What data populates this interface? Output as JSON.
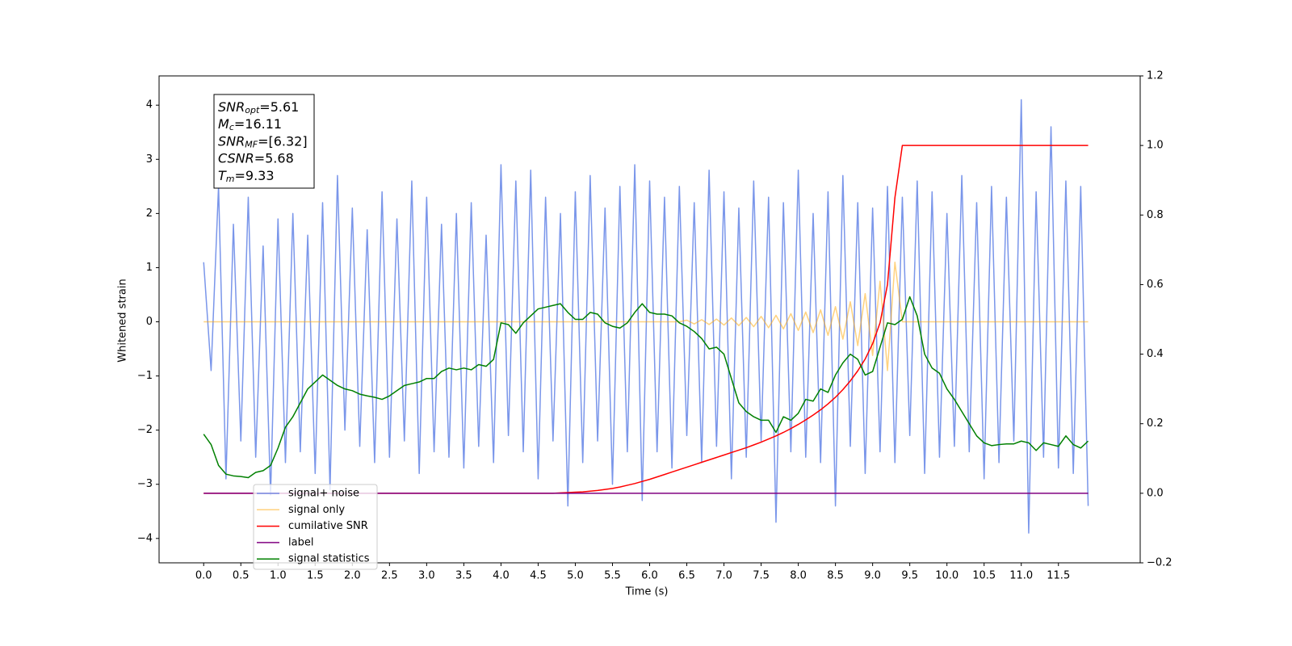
{
  "chart_data": {
    "type": "line",
    "x_label": "Time (s)",
    "y_label": "Whitened strain",
    "xlim": [
      -0.6,
      12.6
    ],
    "ylim": [
      -4.45,
      4.54
    ],
    "y2lim": [
      -0.2,
      1.2
    ],
    "xticks": [
      {
        "value": 0,
        "label": "0.0"
      },
      0.5,
      {
        "value": 1,
        "label": "1.0"
      },
      1.5,
      {
        "value": 2,
        "label": "2.0"
      },
      2.5,
      {
        "value": 3,
        "label": "3.0"
      },
      3.5,
      {
        "value": 4,
        "label": "4.0"
      },
      4.5,
      {
        "value": 5,
        "label": "5.0"
      },
      5.5,
      {
        "value": 6,
        "label": "6.0"
      },
      6.5,
      {
        "value": 7,
        "label": "7.0"
      },
      7.5,
      {
        "value": 8,
        "label": "8.0"
      },
      8.5,
      {
        "value": 9,
        "label": "9.0"
      },
      9.5,
      {
        "value": 10,
        "label": "10.0"
      },
      10.5,
      {
        "value": 11,
        "label": "11.0"
      },
      11.5
    ],
    "yticks": [
      {
        "value": -4,
        "label": "−4"
      },
      {
        "value": -3,
        "label": "−3"
      },
      {
        "value": -2,
        "label": "−2"
      },
      {
        "value": -1,
        "label": "−1"
      },
      0,
      1,
      2,
      3,
      4
    ],
    "y2ticks": [
      {
        "value": -0.2,
        "label": "−0.2"
      },
      {
        "value": 0,
        "label": "0.0"
      },
      0.2,
      0.4,
      0.6,
      0.8,
      {
        "value": 1,
        "label": "1.0"
      },
      1.2
    ],
    "legend_loc": "lower left",
    "annotations": [
      {
        "symbol": "SNR",
        "subscript": "opt",
        "text": "=5.61"
      },
      {
        "symbol": "M",
        "subscript": "c",
        "text": "=16.11"
      },
      {
        "symbol": "SNR",
        "subscript": "MF",
        "text": "=[6.32]"
      },
      {
        "symbol": "CSNR",
        "text": "=5.68"
      },
      {
        "symbol": "T",
        "subscript": "m",
        "text": "=9.33"
      }
    ],
    "x": [
      0,
      0.1,
      0.2,
      0.3,
      0.4,
      0.5,
      0.6,
      0.7,
      0.8,
      0.9,
      1,
      1.1,
      1.2,
      1.3,
      1.4,
      1.5,
      1.6,
      1.7,
      1.8,
      1.9,
      2,
      2.1,
      2.2,
      2.3,
      2.4,
      2.5,
      2.6,
      2.7,
      2.8,
      2.9,
      3,
      3.1,
      3.2,
      3.3,
      3.4,
      3.5,
      3.6,
      3.7,
      3.8,
      3.9,
      4,
      4.1,
      4.2,
      4.3,
      4.4,
      4.5,
      4.6,
      4.7,
      4.8,
      4.9,
      5,
      5.1,
      5.2,
      5.3,
      5.4,
      5.5,
      5.6,
      5.7,
      5.8,
      5.9,
      6,
      6.1,
      6.2,
      6.3,
      6.4,
      6.5,
      6.6,
      6.7,
      6.8,
      6.9,
      7,
      7.1,
      7.2,
      7.3,
      7.4,
      7.5,
      7.6,
      7.7,
      7.8,
      7.9,
      8,
      8.1,
      8.2,
      8.3,
      8.4,
      8.5,
      8.6,
      8.7,
      8.8,
      8.9,
      9,
      9.1,
      9.2,
      9.3,
      9.4,
      9.5,
      9.6,
      9.7,
      9.8,
      9.9,
      10,
      10.1,
      10.2,
      10.3,
      10.4,
      10.5,
      10.6,
      10.7,
      10.8,
      10.9,
      11,
      11.1,
      11.2,
      11.3,
      11.4,
      11.5,
      11.6,
      11.7,
      11.8,
      11.9
    ],
    "series": [
      {
        "name": "signal+ noise",
        "color": "#4169e1",
        "alpha": 0.7,
        "axis": "y",
        "values": [
          1.1,
          -0.9,
          2.5,
          -2.9,
          1.8,
          -2.2,
          2.3,
          -2.5,
          1.4,
          -3.2,
          1.9,
          -2.6,
          2.0,
          -2.4,
          1.6,
          -2.8,
          2.2,
          -3.1,
          2.7,
          -2.0,
          2.1,
          -2.3,
          1.7,
          -2.6,
          2.4,
          -2.5,
          1.9,
          -2.2,
          2.6,
          -2.8,
          2.3,
          -2.4,
          1.8,
          -2.5,
          2.0,
          -2.7,
          2.2,
          -2.3,
          1.6,
          -2.6,
          2.9,
          -2.1,
          2.6,
          -2.4,
          2.8,
          -2.9,
          2.3,
          -2.2,
          2.0,
          -3.4,
          2.4,
          -2.6,
          2.7,
          -2.2,
          2.1,
          -3.0,
          2.5,
          -2.4,
          2.9,
          -3.3,
          2.6,
          -2.4,
          2.3,
          -2.7,
          2.5,
          -2.1,
          2.2,
          -2.6,
          2.8,
          -2.3,
          2.4,
          -2.9,
          2.1,
          -2.5,
          2.6,
          -2.2,
          2.3,
          -3.7,
          2.2,
          -2.4,
          2.8,
          -2.5,
          2.0,
          -2.6,
          2.4,
          -3.4,
          2.7,
          -2.3,
          2.2,
          -2.8,
          2.1,
          -2.4,
          2.5,
          -2.6,
          2.3,
          -2.1,
          2.6,
          -2.8,
          2.4,
          -2.5,
          2.0,
          -2.3,
          2.7,
          -2.4,
          2.2,
          -2.9,
          2.5,
          -2.6,
          2.3,
          -2.2,
          4.1,
          -3.9,
          2.4,
          -2.5,
          3.6,
          -2.7,
          2.6,
          -2.8,
          2.5,
          -3.4
        ]
      },
      {
        "name": "signal only",
        "color": "#ffa500",
        "alpha": 0.5,
        "axis": "y",
        "values": [
          0,
          0,
          0,
          0,
          0,
          0,
          0,
          0,
          0,
          0,
          0,
          0,
          0,
          0,
          0,
          0,
          0,
          0,
          0,
          0,
          0,
          0,
          0,
          0,
          0,
          0,
          0,
          0,
          0,
          0,
          0,
          0,
          0,
          0,
          0,
          0,
          0,
          0,
          0,
          0,
          0,
          0,
          0,
          0,
          0,
          0,
          0,
          0,
          0,
          0,
          0,
          0,
          0,
          0,
          0,
          0,
          0,
          0,
          0,
          0,
          0,
          0,
          0,
          0,
          0,
          0.03,
          -0.04,
          0.04,
          -0.05,
          0.05,
          -0.06,
          0.07,
          -0.07,
          0.08,
          -0.09,
          0.1,
          -0.11,
          0.12,
          -0.13,
          0.15,
          -0.16,
          0.18,
          -0.2,
          0.22,
          -0.25,
          0.28,
          -0.32,
          0.37,
          -0.44,
          0.52,
          -0.62,
          0.75,
          -0.9,
          1.1,
          0,
          0,
          0,
          0,
          0,
          0,
          0,
          0,
          0,
          0,
          0,
          0,
          0,
          0,
          0,
          0,
          0,
          0,
          0,
          0,
          0,
          0,
          0,
          0,
          0,
          0
        ]
      },
      {
        "name": "cumilative SNR",
        "color": "#ff0000",
        "alpha": 1,
        "axis": "y2",
        "values": [
          0,
          0,
          0,
          0,
          0,
          0,
          0,
          0,
          0,
          0,
          0,
          0,
          0,
          0,
          0,
          0,
          0,
          0,
          0,
          0,
          0,
          0,
          0,
          0,
          0,
          0,
          0,
          0,
          0,
          0,
          0,
          0,
          0,
          0,
          0,
          0,
          0,
          0,
          0,
          0,
          0,
          0,
          0,
          0,
          0,
          0,
          0,
          0,
          0.001,
          0.002,
          0.003,
          0.004,
          0.006,
          0.008,
          0.011,
          0.014,
          0.018,
          0.023,
          0.028,
          0.034,
          0.04,
          0.047,
          0.054,
          0.061,
          0.068,
          0.075,
          0.082,
          0.089,
          0.096,
          0.103,
          0.11,
          0.117,
          0.124,
          0.131,
          0.139,
          0.147,
          0.156,
          0.165,
          0.175,
          0.186,
          0.198,
          0.211,
          0.225,
          0.24,
          0.257,
          0.276,
          0.298,
          0.323,
          0.352,
          0.386,
          0.43,
          0.49,
          0.6,
          0.85,
          1,
          1,
          1,
          1,
          1,
          1,
          1,
          1,
          1,
          1,
          1,
          1,
          1,
          1,
          1,
          1,
          1,
          1,
          1,
          1,
          1,
          1,
          1,
          1,
          1,
          1
        ]
      },
      {
        "name": "label",
        "color": "#800080",
        "alpha": 1,
        "axis": "y2",
        "values": [
          0,
          0,
          0,
          0,
          0,
          0,
          0,
          0,
          0,
          0,
          0,
          0,
          0,
          0,
          0,
          0,
          0,
          0,
          0,
          0,
          0,
          0,
          0,
          0,
          0,
          0,
          0,
          0,
          0,
          0,
          0,
          0,
          0,
          0,
          0,
          0,
          0,
          0,
          0,
          0,
          0,
          0,
          0,
          0,
          0,
          0,
          0,
          0,
          0,
          0,
          0,
          0,
          0,
          0,
          0,
          0,
          0,
          0,
          0,
          0,
          0,
          0,
          0,
          0,
          0,
          0,
          0,
          0,
          0,
          0,
          0,
          0,
          0,
          0,
          0,
          0,
          0,
          0,
          0,
          0,
          0,
          0,
          0,
          0,
          0,
          0,
          0,
          0,
          0,
          0,
          0,
          0,
          0,
          0,
          0,
          0,
          0,
          0,
          0,
          0,
          0,
          0,
          0,
          0,
          0,
          0,
          0,
          0,
          0,
          0,
          0,
          0,
          0,
          0,
          0,
          0,
          0,
          0,
          0,
          0
        ]
      },
      {
        "name": "signal statistics",
        "color": "#008000",
        "alpha": 1,
        "axis": "y2",
        "values": [
          0.17,
          0.14,
          0.08,
          0.055,
          0.05,
          0.048,
          0.045,
          0.06,
          0.065,
          0.08,
          0.13,
          0.19,
          0.22,
          0.26,
          0.3,
          0.32,
          0.34,
          0.325,
          0.31,
          0.3,
          0.295,
          0.285,
          0.28,
          0.276,
          0.27,
          0.28,
          0.295,
          0.31,
          0.315,
          0.32,
          0.33,
          0.33,
          0.35,
          0.36,
          0.355,
          0.36,
          0.355,
          0.37,
          0.365,
          0.385,
          0.49,
          0.485,
          0.46,
          0.49,
          0.51,
          0.53,
          0.535,
          0.54,
          0.545,
          0.52,
          0.5,
          0.5,
          0.52,
          0.515,
          0.49,
          0.48,
          0.475,
          0.49,
          0.52,
          0.545,
          0.52,
          0.515,
          0.515,
          0.51,
          0.49,
          0.48,
          0.465,
          0.445,
          0.415,
          0.42,
          0.4,
          0.33,
          0.26,
          0.235,
          0.22,
          0.21,
          0.21,
          0.175,
          0.22,
          0.21,
          0.23,
          0.27,
          0.265,
          0.3,
          0.29,
          0.34,
          0.375,
          0.4,
          0.385,
          0.34,
          0.35,
          0.42,
          0.49,
          0.485,
          0.5,
          0.565,
          0.51,
          0.4,
          0.36,
          0.345,
          0.3,
          0.27,
          0.235,
          0.2,
          0.165,
          0.145,
          0.137,
          0.14,
          0.142,
          0.142,
          0.15,
          0.145,
          0.123,
          0.145,
          0.14,
          0.135,
          0.165,
          0.14,
          0.13,
          0.15
        ]
      }
    ]
  }
}
